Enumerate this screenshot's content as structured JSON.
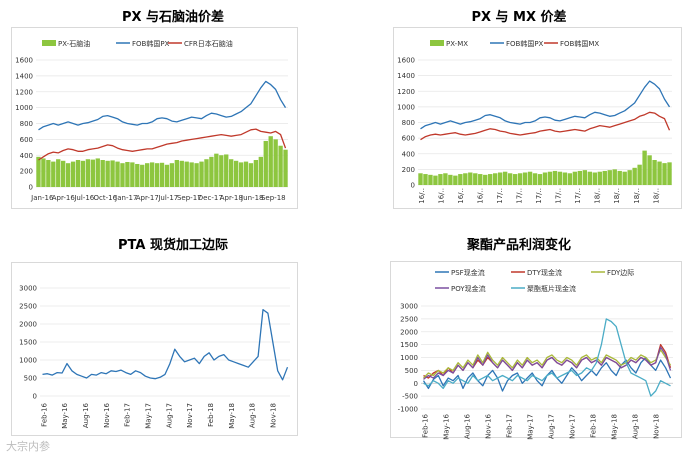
{
  "watermark": "大宗内参",
  "chart_data": [
    {
      "id": "c1",
      "type": "bar+line",
      "title": "PX 与石脑油价差",
      "ylim": [
        0,
        1600
      ],
      "yticks": [
        0,
        200,
        400,
        600,
        800,
        1000,
        1200,
        1400,
        1600
      ],
      "xticks": [
        "Jan-16",
        "Apr-16",
        "Jul-16",
        "Oct-16",
        "Jan-17",
        "Apr-17",
        "Jul-17",
        "Sep-17",
        "Dec-17",
        "Apr-18",
        "Jun-18",
        "Sep-18"
      ],
      "series": [
        {
          "name": "PX-石脑油",
          "kind": "bar",
          "color": "#8dc63f",
          "values": [
            380,
            360,
            340,
            320,
            350,
            330,
            300,
            320,
            340,
            330,
            350,
            345,
            360,
            340,
            330,
            335,
            320,
            300,
            315,
            310,
            290,
            280,
            300,
            310,
            300,
            305,
            280,
            300,
            340,
            330,
            320,
            310,
            300,
            320,
            350,
            380,
            420,
            400,
            410,
            350,
            330,
            310,
            320,
            300,
            340,
            380,
            580,
            640,
            600,
            520,
            470
          ]
        },
        {
          "name": "FOB韩国PX",
          "kind": "line",
          "color": "#2e75b6",
          "values": [
            720,
            760,
            780,
            800,
            780,
            800,
            820,
            800,
            780,
            800,
            810,
            830,
            850,
            890,
            900,
            880,
            860,
            820,
            800,
            790,
            780,
            800,
            800,
            820,
            860,
            870,
            860,
            830,
            820,
            840,
            860,
            880,
            870,
            860,
            900,
            930,
            920,
            900,
            880,
            890,
            920,
            950,
            1000,
            1050,
            1150,
            1250,
            1330,
            1290,
            1230,
            1100,
            1000
          ]
        },
        {
          "name": "CFR日本石脑油",
          "kind": "line",
          "color": "#c0392b",
          "values": [
            340,
            380,
            420,
            440,
            430,
            460,
            480,
            470,
            450,
            450,
            470,
            480,
            490,
            510,
            530,
            520,
            490,
            470,
            460,
            450,
            460,
            470,
            480,
            480,
            500,
            520,
            540,
            550,
            560,
            580,
            590,
            600,
            610,
            620,
            630,
            640,
            650,
            660,
            650,
            640,
            650,
            660,
            690,
            720,
            730,
            700,
            690,
            680,
            700,
            660,
            490
          ]
        }
      ]
    },
    {
      "id": "c2",
      "type": "bar+line",
      "title": "PX 与 MX 价差",
      "ylim": [
        0,
        1600
      ],
      "yticks": [
        0,
        200,
        400,
        600,
        800,
        1000,
        1200,
        1400,
        1600
      ],
      "xticks": [
        "16/..",
        "16/..",
        "16/..",
        "16/..",
        "17/..",
        "17/..",
        "17/..",
        "17/..",
        "17/..",
        "18/..",
        "18/..",
        "18/..",
        "18/.."
      ],
      "series": [
        {
          "name": "PX-MX",
          "kind": "bar",
          "color": "#8dc63f",
          "values": [
            150,
            140,
            130,
            120,
            140,
            150,
            130,
            120,
            140,
            150,
            160,
            150,
            140,
            130,
            140,
            150,
            160,
            170,
            150,
            140,
            150,
            160,
            170,
            150,
            140,
            160,
            170,
            180,
            170,
            160,
            150,
            170,
            180,
            190,
            170,
            160,
            170,
            180,
            190,
            200,
            180,
            170,
            190,
            220,
            260,
            440,
            380,
            320,
            300,
            280,
            290
          ]
        },
        {
          "name": "FOB韩国PX",
          "kind": "line",
          "color": "#2e75b6",
          "values": [
            720,
            760,
            780,
            800,
            780,
            800,
            820,
            800,
            780,
            800,
            810,
            830,
            850,
            890,
            900,
            880,
            860,
            820,
            800,
            790,
            780,
            800,
            800,
            820,
            860,
            870,
            860,
            830,
            820,
            840,
            860,
            880,
            870,
            860,
            900,
            930,
            920,
            900,
            880,
            890,
            920,
            950,
            1000,
            1050,
            1150,
            1250,
            1330,
            1290,
            1230,
            1100,
            1000
          ]
        },
        {
          "name": "FOB韩国MX",
          "kind": "line",
          "color": "#c0392b",
          "values": [
            580,
            620,
            640,
            650,
            640,
            650,
            660,
            670,
            650,
            640,
            650,
            660,
            680,
            700,
            720,
            710,
            690,
            680,
            660,
            650,
            640,
            650,
            660,
            670,
            690,
            700,
            710,
            690,
            680,
            690,
            700,
            710,
            700,
            690,
            720,
            740,
            760,
            750,
            740,
            760,
            780,
            800,
            820,
            840,
            880,
            900,
            930,
            920,
            880,
            850,
            700
          ]
        }
      ]
    },
    {
      "id": "c3",
      "type": "line",
      "title": "PTA 现货加工边际",
      "ylim": [
        0,
        3000
      ],
      "yticks": [
        0,
        500,
        1000,
        1500,
        2000,
        2500,
        3000
      ],
      "xticks": [
        "Feb-16",
        "May-16",
        "Aug-16",
        "Nov-16",
        "Feb-17",
        "May-17",
        "Aug-17",
        "Nov-17",
        "Feb-18",
        "May-18",
        "Aug-18",
        "Nov-18"
      ],
      "series": [
        {
          "name": "PTA",
          "kind": "line",
          "color": "#2e75b6",
          "values": [
            600,
            620,
            580,
            650,
            640,
            900,
            700,
            600,
            550,
            500,
            600,
            580,
            650,
            620,
            700,
            680,
            720,
            650,
            600,
            700,
            650,
            550,
            500,
            480,
            520,
            600,
            900,
            1300,
            1100,
            950,
            1000,
            1050,
            900,
            1100,
            1200,
            1000,
            1100,
            1150,
            1000,
            950,
            900,
            850,
            800,
            950,
            1100,
            2400,
            2300,
            1500,
            700,
            450,
            800
          ]
        }
      ]
    },
    {
      "id": "c4",
      "type": "line",
      "title": "聚酯产品利润变化",
      "ylim": [
        -1000,
        3000
      ],
      "yticks": [
        -1000,
        -500,
        0,
        500,
        1000,
        1500,
        2000,
        2500,
        3000
      ],
      "xticks": [
        "Feb-16",
        "May-16",
        "Aug-16",
        "Nov-16",
        "Feb-17",
        "May-17",
        "Aug-17",
        "Nov-17",
        "Feb-18",
        "May-18",
        "Aug-18",
        "Nov-18"
      ],
      "series": [
        {
          "name": "PSF现金流",
          "kind": "line",
          "color": "#2e75b6",
          "values": [
            100,
            -200,
            150,
            300,
            -100,
            200,
            100,
            300,
            -200,
            200,
            400,
            100,
            -100,
            300,
            500,
            200,
            -300,
            100,
            300,
            400,
            0,
            200,
            400,
            100,
            -100,
            300,
            500,
            200,
            0,
            300,
            600,
            400,
            100,
            300,
            500,
            300,
            600,
            800,
            500,
            300,
            700,
            900,
            600,
            400,
            800,
            1000,
            700,
            500,
            900,
            600,
            200
          ]
        },
        {
          "name": "DTY现金流",
          "kind": "line",
          "color": "#c0392b",
          "values": [
            300,
            200,
            400,
            500,
            300,
            600,
            400,
            700,
            500,
            800,
            600,
            900,
            700,
            1000,
            800,
            600,
            900,
            700,
            500,
            800,
            600,
            900,
            700,
            800,
            600,
            900,
            1000,
            800,
            700,
            900,
            800,
            600,
            900,
            1000,
            800,
            900,
            700,
            1000,
            900,
            800,
            600,
            700,
            900,
            800,
            1000,
            900,
            700,
            800,
            1500,
            1200,
            600
          ]
        },
        {
          "name": "FDY边际",
          "kind": "line",
          "color": "#a9b83a",
          "values": [
            200,
            400,
            300,
            500,
            400,
            600,
            500,
            800,
            600,
            900,
            700,
            1100,
            800,
            1200,
            900,
            700,
            1000,
            800,
            600,
            900,
            700,
            1000,
            800,
            900,
            700,
            1000,
            1100,
            900,
            800,
            1000,
            900,
            700,
            1000,
            1100,
            900,
            1000,
            800,
            1100,
            1000,
            900,
            700,
            800,
            1000,
            900,
            1100,
            1000,
            800,
            900,
            1300,
            1000,
            700
          ]
        },
        {
          "name": "POY现金流",
          "kind": "line",
          "color": "#7b4fa0",
          "values": [
            150,
            300,
            200,
            400,
            300,
            500,
            400,
            700,
            500,
            800,
            600,
            1000,
            700,
            1100,
            800,
            600,
            900,
            700,
            500,
            800,
            600,
            900,
            700,
            800,
            600,
            900,
            1000,
            800,
            700,
            900,
            800,
            600,
            900,
            1000,
            800,
            900,
            700,
            1000,
            900,
            800,
            600,
            700,
            900,
            800,
            1000,
            900,
            700,
            800,
            1400,
            1100,
            500
          ]
        },
        {
          "name": "聚酯瓶片现金流",
          "kind": "line",
          "color": "#4bacc6",
          "values": [
            0,
            -100,
            100,
            0,
            -200,
            100,
            0,
            200,
            100,
            0,
            300,
            100,
            200,
            300,
            100,
            200,
            300,
            200,
            100,
            300,
            200,
            100,
            300,
            200,
            100,
            300,
            400,
            200,
            300,
            400,
            500,
            300,
            400,
            600,
            500,
            800,
            1500,
            2500,
            2400,
            2200,
            1500,
            800,
            400,
            300,
            200,
            100,
            -500,
            -300,
            100,
            0,
            -100
          ]
        }
      ]
    }
  ]
}
